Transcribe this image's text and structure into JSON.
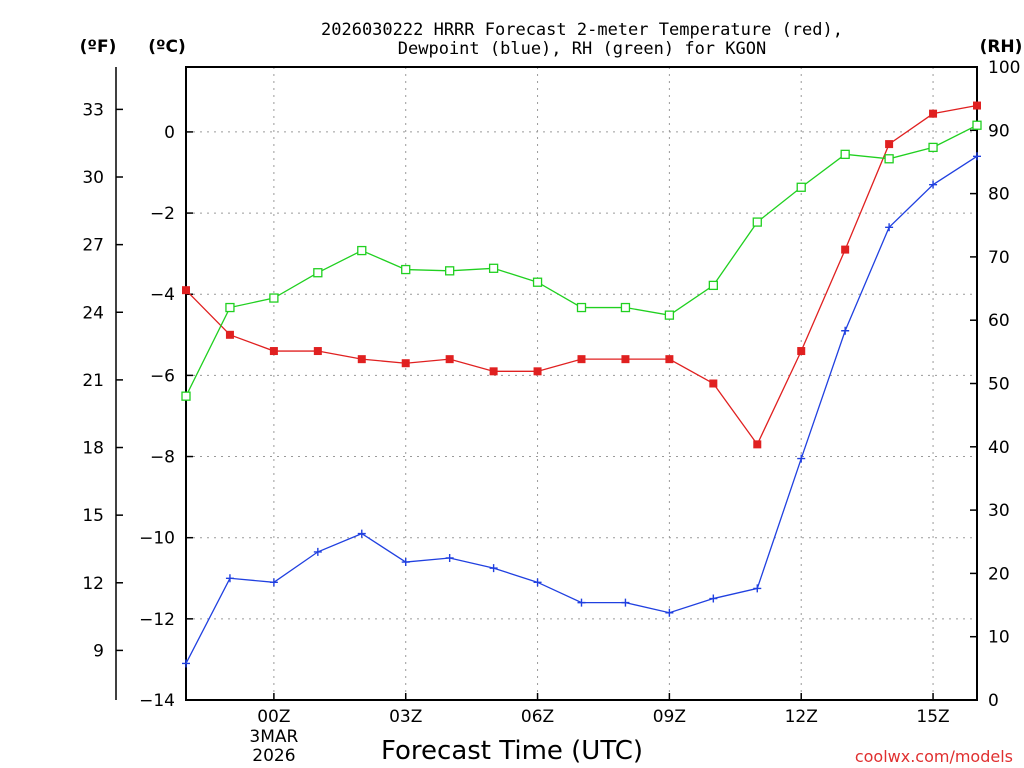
{
  "chart_data": {
    "type": "line",
    "title_line1": "2026030222 HRRR Forecast 2-meter Temperature (red),",
    "title_line2": "Dewpoint (blue), RH (green) for KGON",
    "xlabel": "Forecast Time (UTC)",
    "credit": "coolwx.com/models",
    "unit_f": "(ºF)",
    "unit_c": "(ºC)",
    "unit_rh": "(RH)",
    "x_hours": [
      -2,
      -1,
      0,
      1,
      2,
      3,
      4,
      5,
      6,
      7,
      8,
      9,
      10,
      11,
      12,
      13,
      14,
      15,
      16
    ],
    "xlim": [
      -2,
      16
    ],
    "x_ticks": [
      {
        "hour": 0,
        "label": "00Z",
        "date_line1": "3MAR",
        "date_line2": "2026"
      },
      {
        "hour": 3,
        "label": "03Z"
      },
      {
        "hour": 6,
        "label": "06Z"
      },
      {
        "hour": 9,
        "label": "09Z"
      },
      {
        "hour": 12,
        "label": "12Z"
      },
      {
        "hour": 15,
        "label": "15Z"
      }
    ],
    "celsius_axis": {
      "lim": [
        -14,
        1.6
      ],
      "ticks": [
        0,
        -2,
        -4,
        -6,
        -8,
        -10,
        -12,
        -14
      ],
      "tick_labels": [
        "0",
        "−2",
        "−4",
        "−6",
        "−8",
        "−10",
        "−12",
        "−14"
      ]
    },
    "fahrenheit_ticks": [
      {
        "value": 33,
        "label": "33"
      },
      {
        "value": 30,
        "label": "30"
      },
      {
        "value": 27,
        "label": "27"
      },
      {
        "value": 24,
        "label": "24"
      },
      {
        "value": 21,
        "label": "21"
      },
      {
        "value": 18,
        "label": "18"
      },
      {
        "value": 15,
        "label": "15"
      },
      {
        "value": 12,
        "label": "12"
      },
      {
        "value": 9,
        "label": "9"
      }
    ],
    "rh_axis": {
      "lim": [
        0,
        100
      ],
      "ticks": [
        0,
        10,
        20,
        30,
        40,
        50,
        60,
        70,
        80,
        90,
        100
      ]
    },
    "series": [
      {
        "name": "Temperature",
        "units": "degC",
        "color": "#e02020",
        "marker": "filled-square",
        "values": [
          -3.9,
          -5.0,
          -5.4,
          -5.4,
          -5.6,
          -5.7,
          -5.6,
          -5.9,
          -5.9,
          -5.6,
          -5.6,
          -5.6,
          -6.2,
          -7.7,
          -5.4,
          -2.9,
          -0.3,
          0.45,
          0.65
        ]
      },
      {
        "name": "Dewpoint",
        "units": "degC",
        "color": "#2040e0",
        "marker": "plus",
        "values": [
          -13.1,
          -11.0,
          -11.1,
          -10.35,
          -9.9,
          -10.6,
          -10.5,
          -10.75,
          -11.1,
          -11.6,
          -11.6,
          -11.85,
          -11.5,
          -11.25,
          -8.05,
          -4.9,
          -2.35,
          -1.3,
          -0.6
        ]
      },
      {
        "name": "Relative Humidity",
        "units": "percent",
        "color": "#20d020",
        "marker": "open-square",
        "values": [
          48,
          62,
          63.5,
          67.5,
          71,
          68,
          67.8,
          68.2,
          66,
          62,
          62,
          60.8,
          65.5,
          75.5,
          81,
          86.2,
          85.5,
          87.3,
          90.8
        ]
      }
    ]
  }
}
